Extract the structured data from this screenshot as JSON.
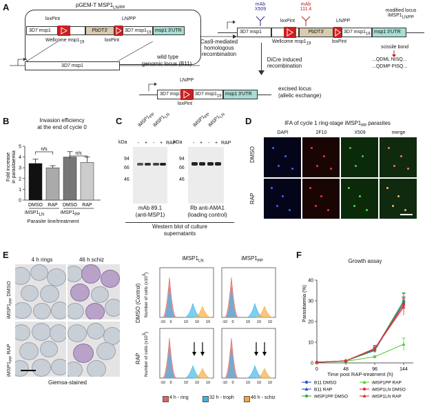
{
  "panels": {
    "A": {
      "label": "A",
      "plasmid_title": "pGEM-T MSP1",
      "plasmid_sub": "LN/PP",
      "loxpint": "loxPint",
      "lnpp": "LN/PP",
      "msp1": "3D7 msp1",
      "pbdt": "PbDT3'",
      "msp1_19": "3D7 msp1",
      "sub19": "19",
      "utr": "msp1 3'UTR",
      "wellcome": "Wellcome msp1",
      "wild_type": "wild type",
      "genomic": "genomic locus (B11)",
      "cas9": "Cas9-mediated",
      "homol": "homologous",
      "recomb": "recombination",
      "mab1": "mAb",
      "mab1_name": "X509",
      "mab2": "mAb",
      "mab2_name": "111.4",
      "modified": "modified locus",
      "modified2": "iMSP1",
      "modified2_sub": "LN/PP",
      "scissile": "scissile bond",
      "seq1": "...QDML NISQ...",
      "seq2": "...QDMP PISQ...",
      "dicre1": "DiCre induced",
      "dicre2": "recombination",
      "excised1": "excised locus",
      "excised2": "(allelic exchange)"
    },
    "B": {
      "label": "B",
      "title1": "Invasion efficiency",
      "title2": "at the end of cycle 0",
      "ylabel1": "Fold increase",
      "ylabel2": "in parasitaemia",
      "ns": "n/s",
      "xlabel": "Parasite line/treatment",
      "group1": "iMSP1",
      "group1_sub": "LN",
      "group2": "iMSP1",
      "group2_sub": "PP"
    },
    "C": {
      "label": "C",
      "kda": "kDa",
      "rap": "RAP",
      "m94": "94",
      "m66": "66",
      "m46": "46",
      "lane_pp": "iMSP1",
      "lane_pp_sub": "PP",
      "lane_ln": "iMSP1",
      "lane_ln_sub": "LN",
      "minus": "-",
      "plus": "+",
      "blot1_a": "mAb 89.1",
      "blot1_b": "(anti-MSP1)",
      "blot2_a": "Rb anti-AMA1",
      "blot2_b": "(loading control)",
      "caption1": "Western blot of culture",
      "caption2": "supernatants"
    },
    "D": {
      "label": "D",
      "title": "IFA of cycle 1 ring-stage iMSP1",
      "title_sub": "PP",
      "title_end": " parasites",
      "cols": [
        "DAPI",
        "2F10",
        "X509",
        "merge"
      ],
      "rows": [
        "DMSO",
        "RAP"
      ]
    },
    "E": {
      "label": "E",
      "col1": "4 h rings",
      "col2": "46 h schiz",
      "row1": "iMSP1",
      "row1_sub": "PP",
      "row1_end": " DMSO",
      "row2": "iMSP1",
      "row2_sub": "PP",
      "row2_end": " RAP",
      "caption": "Giemsa-stained",
      "flow_title1": "iMSP1",
      "flow_title1_sub": "LN",
      "flow_title2": "iMSP1",
      "flow_title2_sub": "PP",
      "dmso_label": "DMSO (Control)",
      "rap_label": "RAP",
      "ylab": "Number of cells (x10",
      "ylab_sup": "3",
      "ylab_end": ")",
      "ticks": [
        "-10",
        "0",
        "10",
        "10",
        "10"
      ],
      "legend": [
        "4 h - ring",
        "32 h - troph",
        "46 h - schiz"
      ],
      "legend_colors": [
        "#e7605d",
        "#3ab3e8",
        "#f5a83a"
      ]
    },
    "F": {
      "label": "F",
      "title": "Growth assay",
      "ylabel": "Parasitaemia (%)",
      "xlabel": "Time post RAP-treatment (h)",
      "yticks": [
        "0",
        "10",
        "20",
        "30",
        "40"
      ],
      "xticks": [
        "0",
        "48",
        "96",
        "144"
      ]
    }
  },
  "chart_data": [
    {
      "type": "bar",
      "title": "Invasion efficiency at the end of cycle 0",
      "categories": [
        "DMSO",
        "RAP",
        "DMSO",
        "RAP"
      ],
      "groups": [
        "iMSP1LN",
        "iMSP1LN",
        "iMSP1PP",
        "iMSP1PP"
      ],
      "values": [
        3.4,
        3.0,
        4.0,
        3.5
      ],
      "errors": [
        0.4,
        0.2,
        0.5,
        0.5
      ],
      "colors": [
        "#111111",
        "#aaaaaa",
        "#777777",
        "#cccccc"
      ],
      "ylim": [
        0,
        5
      ],
      "yticks": [
        0,
        1,
        2,
        3,
        4,
        5
      ],
      "ylabel": "Fold increase in parasitaemia",
      "xlabel": "Parasite line/treatment"
    },
    {
      "type": "line",
      "title": "Growth assay",
      "x": [
        0,
        48,
        96,
        144
      ],
      "xlabel": "Time post RAP-treatment (h)",
      "ylabel": "Parasitaemia (%)",
      "ylim": [
        0,
        40
      ],
      "series": [
        {
          "name": "B11 DMSO",
          "color": "#2255cc",
          "marker": "circle",
          "values": [
            0.3,
            1.0,
            6.0,
            29.0
          ],
          "errors": [
            0,
            0.2,
            1.2,
            3.0
          ]
        },
        {
          "name": "B11 RAP",
          "color": "#2255cc",
          "marker": "triangle",
          "values": [
            0.3,
            1.0,
            6.5,
            30.0
          ],
          "errors": [
            0,
            0.2,
            1.2,
            3.5
          ]
        },
        {
          "name": "iMSP1PP DMSO",
          "color": "#33aa33",
          "marker": "circle",
          "values": [
            0.3,
            1.0,
            6.2,
            30.0
          ],
          "errors": [
            0,
            0.2,
            1.2,
            4.0
          ]
        },
        {
          "name": "iMSP1PP RAP",
          "color": "#55cc33",
          "marker": "triangle",
          "values": [
            0.3,
            0.8,
            3.0,
            9.0
          ],
          "errors": [
            0,
            0.1,
            0.5,
            3.0
          ]
        },
        {
          "name": "iMSP1LN DMSO",
          "color": "#dd3333",
          "marker": "circle",
          "values": [
            0.3,
            1.0,
            7.0,
            28.0
          ],
          "errors": [
            0,
            0.2,
            1.5,
            3.5
          ]
        },
        {
          "name": "iMSP1LN RAP",
          "color": "#dd3333",
          "marker": "triangle",
          "values": [
            0.3,
            1.0,
            6.8,
            27.0
          ],
          "errors": [
            0,
            0.2,
            1.5,
            4.0
          ]
        }
      ]
    }
  ]
}
